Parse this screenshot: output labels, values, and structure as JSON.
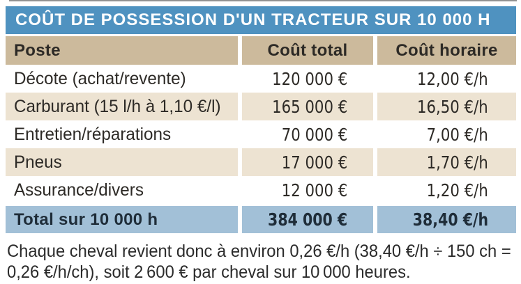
{
  "table": {
    "title": "COÛT DE POSSESSION D'UN TRACTEUR SUR 10 000 H",
    "columns": [
      "Poste",
      "Coût total",
      "Coût horaire"
    ],
    "rows": [
      {
        "poste": "Décote (achat/revente)",
        "cout_total": "120 000 €",
        "cout_horaire": "12,00 €/h"
      },
      {
        "poste": "Carburant (15 l/h à 1,10 €/l)",
        "cout_total": "165 000 €",
        "cout_horaire": "16,50 €/h"
      },
      {
        "poste": "Entretien/réparations",
        "cout_total": "70 000 €",
        "cout_horaire": "7,00 €/h"
      },
      {
        "poste": "Pneus",
        "cout_total": "17 000 €",
        "cout_horaire": "1,70 €/h"
      },
      {
        "poste": "Assurance/divers",
        "cout_total": "12 000 €",
        "cout_horaire": "1,20 €/h"
      }
    ],
    "total": {
      "poste": "Total sur 10 000 h",
      "cout_total": "384 000 €",
      "cout_horaire": "38,40 €/h"
    }
  },
  "footnote": {
    "line1": "Chaque cheval revient donc à environ 0,26 €/h (38,40 €/h ÷ 150 ch =",
    "line2": "0,26 €/h/ch), soit 2 600 € par cheval sur 10 000 heures."
  },
  "colors": {
    "title_bar": "#4f92c0",
    "header_row": "#ccba9c",
    "zebra_row": "#ede3d2",
    "total_row": "#a2c0d7",
    "body_text": "#2d2a26",
    "total_text": "#1f2d39",
    "title_text": "#ffffff"
  },
  "chart_data": {
    "type": "table",
    "title": "COÛT DE POSSESSION D'UN TRACTEUR SUR 10 000 H",
    "columns": [
      "Poste",
      "Coût total",
      "Coût horaire"
    ],
    "rows": [
      {
        "poste": "Décote (achat/revente)",
        "cout_total_eur": 120000,
        "cout_horaire_eur_h": 12.0
      },
      {
        "poste": "Carburant (15 l/h à 1,10 €/l)",
        "cout_total_eur": 165000,
        "cout_horaire_eur_h": 16.5
      },
      {
        "poste": "Entretien/réparations",
        "cout_total_eur": 70000,
        "cout_horaire_eur_h": 7.0
      },
      {
        "poste": "Pneus",
        "cout_total_eur": 17000,
        "cout_horaire_eur_h": 1.7
      },
      {
        "poste": "Assurance/divers",
        "cout_total_eur": 12000,
        "cout_horaire_eur_h": 1.2
      }
    ],
    "total": {
      "poste": "Total sur 10 000 h",
      "cout_total_eur": 384000,
      "cout_horaire_eur_h": 38.4
    },
    "note": "Chaque cheval revient donc à environ 0,26 €/h (38,40 €/h ÷ 150 ch = 0,26 €/h/ch), soit 2 600 € par cheval sur 10 000 heures."
  }
}
